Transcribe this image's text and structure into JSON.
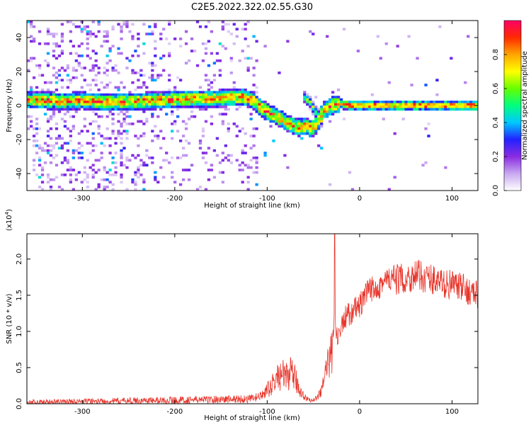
{
  "title": "C2E5.2022.322.02.55.G30",
  "chart_data": [
    {
      "type": "heatmap",
      "xlabel": "Height of straight line (km)",
      "ylabel": "Frequency (Hz)",
      "xlim": [
        -360,
        128
      ],
      "ylim": [
        -50,
        50
      ],
      "xticks": [
        -300,
        -200,
        -100,
        0,
        100
      ],
      "yticks": [
        -40,
        -20,
        0,
        20,
        40
      ],
      "colorbar": {
        "label": "Normalized spectral amplitude",
        "range": [
          0,
          1
        ],
        "ticks": [
          "0.0",
          "0.2",
          "0.4",
          "0.6",
          "0.8"
        ],
        "colors": [
          "#ffffff",
          "#c8a8f0",
          "#8a2be2",
          "#2222ff",
          "#00c8ff",
          "#00ff7f",
          "#66ff00",
          "#ffff00",
          "#ffa500",
          "#ff2a00",
          "#ff0066"
        ]
      },
      "ridge": {
        "name": "",
        "x": [
          -355,
          -340,
          -320,
          -300,
          -280,
          -260,
          -240,
          -220,
          -200,
          -180,
          -160,
          -140,
          -125,
          -115,
          -105,
          -95,
          -85,
          -75,
          -65,
          -58,
          -52,
          -45,
          -40,
          -35,
          -30,
          -20,
          -10,
          0,
          20,
          40,
          60,
          80,
          100,
          128
        ],
        "y": [
          3,
          3,
          2.5,
          3,
          2,
          2,
          2.5,
          3,
          3.5,
          4,
          4,
          4.5,
          5,
          3,
          -2,
          -5,
          -8,
          -11,
          -13,
          -12,
          -14,
          -10,
          -3,
          -2,
          0,
          1,
          0,
          0,
          0,
          0,
          0,
          0,
          0,
          0
        ]
      },
      "secondary_ridge": {
        "x": [
          -62,
          -58,
          -54,
          -50,
          -45,
          -40
        ],
        "y": [
          6,
          4,
          2,
          -2,
          -5,
          -10
        ]
      }
    },
    {
      "type": "line",
      "xlabel": "Height of straight line (km)",
      "ylabel": "SNR (10 * v/v)",
      "yscale_note": "(x10⁴)",
      "yscale_base": "(x10",
      "yscale_exp": "4",
      "xlim": [
        -360,
        128
      ],
      "ylim": [
        0,
        2.35
      ],
      "xticks": [
        -300,
        -200,
        -100,
        0,
        100
      ],
      "yticks": [
        "0.0",
        "0.5",
        "1.0",
        "1.5",
        "2.0"
      ],
      "color": "#e8342a",
      "series": [
        {
          "name": "",
          "x": [
            -360,
            -300,
            -250,
            -200,
            -150,
            -115,
            -105,
            -95,
            -90,
            -85,
            -80,
            -75,
            -70,
            -65,
            -60,
            -55,
            -50,
            -45,
            -40,
            -35,
            -30,
            -27,
            -25,
            -22,
            -20,
            -15,
            -10,
            -5,
            0,
            5,
            10,
            20,
            30,
            40,
            50,
            60,
            70,
            80,
            90,
            100,
            110,
            120,
            128
          ],
          "y": [
            0.02,
            0.03,
            0.04,
            0.05,
            0.06,
            0.07,
            0.12,
            0.25,
            0.35,
            0.4,
            0.38,
            0.42,
            0.35,
            0.2,
            0.1,
            0.05,
            0.05,
            0.1,
            0.25,
            0.45,
            0.85,
            1.2,
            0.9,
            1.0,
            1.05,
            1.2,
            1.25,
            1.3,
            1.35,
            1.45,
            1.55,
            1.65,
            1.7,
            1.72,
            1.72,
            1.78,
            1.75,
            1.72,
            1.65,
            1.65,
            1.6,
            1.55,
            1.5
          ]
        }
      ]
    }
  ]
}
